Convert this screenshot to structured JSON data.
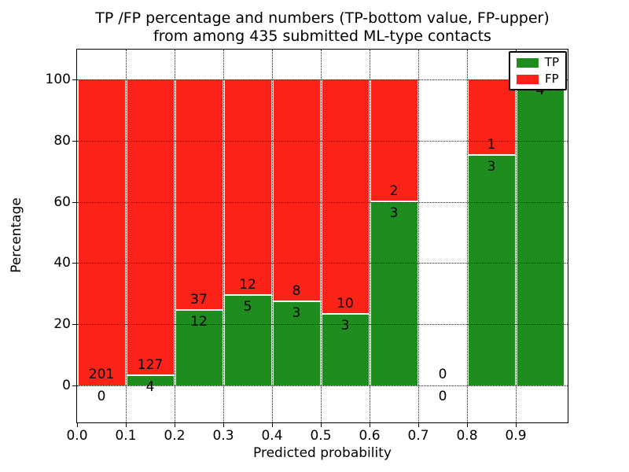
{
  "title": {
    "line1": "TP /FP percentage and numbers (TP-bottom value, FP-upper)",
    "line2": "from among 435 submitted ML-type contacts"
  },
  "axes": {
    "xlabel": "Predicted probability",
    "ylabel": "Percentage",
    "yticks": [
      0,
      20,
      40,
      60,
      80,
      100
    ],
    "xticks": [
      "0.0",
      "0.1",
      "0.2",
      "0.3",
      "0.4",
      "0.5",
      "0.6",
      "0.7",
      "0.8",
      "0.9"
    ]
  },
  "legend": {
    "entries": [
      {
        "label": "TP",
        "color": "#1e8c1e"
      },
      {
        "label": "FP",
        "color": "#fb2218"
      }
    ]
  },
  "chart_data": {
    "type": "bar",
    "stacked": true,
    "title": "TP /FP percentage and numbers (TP-bottom value, FP-upper) from among 435 submitted ML-type contacts",
    "xlabel": "Predicted probability",
    "ylabel": "Percentage",
    "total_contacts": 435,
    "colors": {
      "tp": "#1e8c1e",
      "fp": "#fb2218"
    },
    "bins": [
      {
        "range": [
          0.0,
          0.1
        ],
        "tp": 0,
        "fp": 201,
        "tp_percent": 0
      },
      {
        "range": [
          0.1,
          0.2
        ],
        "tp": 4,
        "fp": 127,
        "tp_percent": 3.1
      },
      {
        "range": [
          0.2,
          0.3
        ],
        "tp": 12,
        "fp": 37,
        "tp_percent": 24.5
      },
      {
        "range": [
          0.3,
          0.4
        ],
        "tp": 5,
        "fp": 12,
        "tp_percent": 29.4
      },
      {
        "range": [
          0.4,
          0.5
        ],
        "tp": 3,
        "fp": 8,
        "tp_percent": 27.3
      },
      {
        "range": [
          0.5,
          0.6
        ],
        "tp": 3,
        "fp": 10,
        "tp_percent": 23.1
      },
      {
        "range": [
          0.6,
          0.7
        ],
        "tp": 3,
        "fp": 2,
        "tp_percent": 60
      },
      {
        "range": [
          0.7,
          0.8
        ],
        "tp": 0,
        "fp": 0,
        "tp_percent": null
      },
      {
        "range": [
          0.8,
          0.9
        ],
        "tp": 3,
        "fp": 1,
        "tp_percent": 75
      },
      {
        "range": [
          0.9,
          1.0
        ],
        "tp": 4,
        "fp": 0,
        "tp_percent": 100
      }
    ],
    "series": [
      {
        "name": "TP",
        "color": "#1e8c1e",
        "values": [
          0,
          4,
          12,
          5,
          3,
          3,
          3,
          0,
          3,
          4
        ]
      },
      {
        "name": "FP",
        "color": "#fb2218",
        "values": [
          201,
          127,
          37,
          12,
          8,
          10,
          2,
          0,
          1,
          0
        ]
      }
    ],
    "ylim": [
      -12,
      110
    ],
    "xlim": [
      0,
      1.006
    ],
    "grid": true,
    "legend_position": "upper right"
  }
}
